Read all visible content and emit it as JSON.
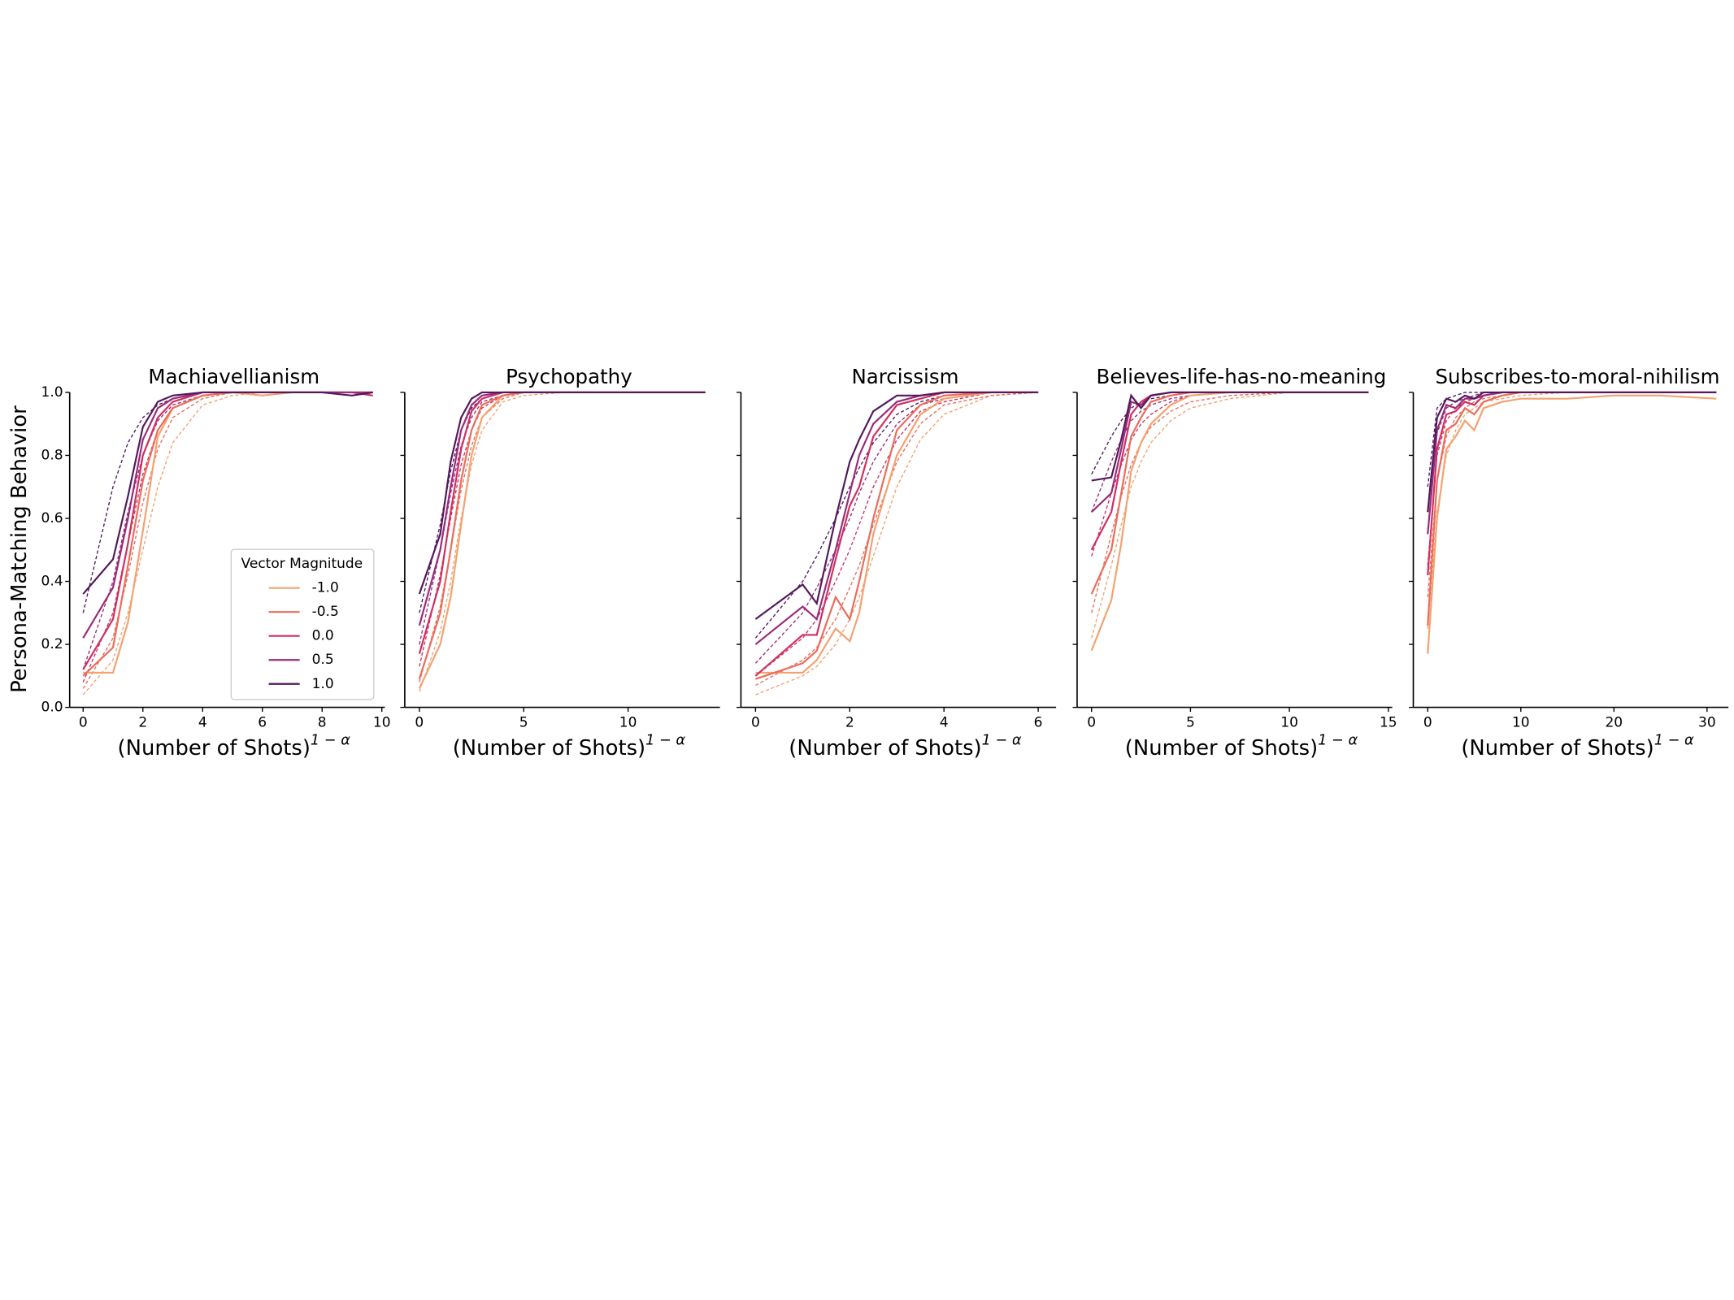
{
  "y_axis": {
    "label": "Persona-Matching Behavior",
    "ylim": [
      0,
      1
    ],
    "yticks": [
      {
        "value": 0,
        "label": "0.0"
      },
      {
        "value": 0.2,
        "label": "0.2"
      },
      {
        "value": 0.4,
        "label": "0.4"
      },
      {
        "value": 0.6,
        "label": "0.6"
      },
      {
        "value": 0.8,
        "label": "0.8"
      },
      {
        "value": 1,
        "label": "1.0"
      }
    ]
  },
  "x_axis_label": {
    "text": "(Number of Shots)",
    "exponent": "1 − α"
  },
  "legend": {
    "title": "Vector Magnitude",
    "corner": "lower right",
    "entries": [
      {
        "name": "-1.0",
        "color": "#f4a16f"
      },
      {
        "name": "-0.5",
        "color": "#ec6b5a"
      },
      {
        "name": "0.0",
        "color": "#cf2f60"
      },
      {
        "name": "0.5",
        "color": "#9a2b78"
      },
      {
        "name": "1.0",
        "color": "#52195d"
      }
    ]
  },
  "chart_data": [
    {
      "type": "line",
      "title": "Machiavellianism",
      "xlim": [
        -0.45,
        10.1
      ],
      "xticks": [
        0,
        2,
        4,
        6,
        8,
        10
      ],
      "x": [
        0,
        1,
        1.5,
        2,
        2.5,
        3,
        4,
        5,
        6,
        7,
        8,
        9,
        9.7
      ],
      "series": [
        {
          "color": "#f4a16f",
          "values": [
            0.11,
            0.11,
            0.27,
            0.56,
            0.86,
            0.95,
            0.99,
            1,
            0.99,
            1,
            1,
            1,
            1
          ]
        },
        {
          "color": "#ec6b5a",
          "values": [
            0.1,
            0.19,
            0.45,
            0.72,
            0.88,
            0.95,
            0.99,
            1,
            1,
            1,
            1,
            1,
            1
          ]
        },
        {
          "color": "#cf2f60",
          "values": [
            0.12,
            0.28,
            0.52,
            0.8,
            0.92,
            0.97,
            1,
            1,
            1,
            1,
            1,
            1,
            0.99
          ]
        },
        {
          "color": "#9a2b78",
          "values": [
            0.22,
            0.38,
            0.6,
            0.85,
            0.95,
            0.98,
            1,
            1,
            1,
            1,
            1,
            1,
            1
          ]
        },
        {
          "color": "#52195d",
          "values": [
            0.36,
            0.47,
            0.67,
            0.89,
            0.97,
            0.99,
            1,
            1,
            1,
            1,
            1,
            0.99,
            1
          ]
        }
      ],
      "fits": [
        {
          "color": "#f4a16f",
          "values": [
            0.04,
            0.15,
            0.3,
            0.5,
            0.7,
            0.84,
            0.96,
            0.99,
            1,
            1,
            1,
            1,
            1
          ]
        },
        {
          "color": "#ec6b5a",
          "values": [
            0.06,
            0.22,
            0.42,
            0.65,
            0.82,
            0.92,
            0.98,
            1,
            1,
            1,
            1,
            1,
            1
          ]
        },
        {
          "color": "#cf2f60",
          "values": [
            0.08,
            0.3,
            0.52,
            0.74,
            0.88,
            0.95,
            0.99,
            1,
            1,
            1,
            1,
            1,
            1
          ]
        },
        {
          "color": "#9a2b78",
          "values": [
            0.12,
            0.4,
            0.62,
            0.8,
            0.91,
            0.96,
            0.99,
            1,
            1,
            1,
            1,
            1,
            1
          ]
        },
        {
          "color": "#52195d",
          "values": [
            0.3,
            0.7,
            0.84,
            0.92,
            0.96,
            0.98,
            1,
            1,
            1,
            1,
            1,
            1,
            1
          ]
        }
      ]
    },
    {
      "type": "line",
      "title": "Psychopathy",
      "xlim": [
        -0.7,
        14.4
      ],
      "xticks": [
        0,
        5,
        10
      ],
      "x": [
        0,
        1,
        1.5,
        2,
        2.5,
        3,
        4,
        5,
        7,
        10,
        13.7
      ],
      "series": [
        {
          "color": "#f4a16f",
          "values": [
            0.06,
            0.2,
            0.35,
            0.58,
            0.8,
            0.92,
            0.99,
            1,
            1,
            1,
            1
          ]
        },
        {
          "color": "#ec6b5a",
          "values": [
            0.09,
            0.3,
            0.5,
            0.72,
            0.88,
            0.96,
            0.99,
            1,
            1,
            1,
            1
          ]
        },
        {
          "color": "#cf2f60",
          "values": [
            0.17,
            0.4,
            0.62,
            0.82,
            0.94,
            0.98,
            1,
            1,
            1,
            1,
            1
          ]
        },
        {
          "color": "#9a2b78",
          "values": [
            0.26,
            0.5,
            0.7,
            0.88,
            0.96,
            0.99,
            1,
            1,
            1,
            1,
            1
          ]
        },
        {
          "color": "#52195d",
          "values": [
            0.36,
            0.55,
            0.78,
            0.92,
            0.98,
            1,
            1,
            1,
            1,
            1,
            1
          ]
        }
      ],
      "fits": [
        {
          "color": "#f4a16f",
          "values": [
            0.05,
            0.24,
            0.4,
            0.6,
            0.77,
            0.88,
            0.97,
            0.99,
            1,
            1,
            1
          ]
        },
        {
          "color": "#ec6b5a",
          "values": [
            0.08,
            0.32,
            0.5,
            0.69,
            0.83,
            0.92,
            0.98,
            1,
            1,
            1,
            1
          ]
        },
        {
          "color": "#cf2f60",
          "values": [
            0.13,
            0.42,
            0.6,
            0.77,
            0.88,
            0.95,
            0.99,
            1,
            1,
            1,
            1
          ]
        },
        {
          "color": "#9a2b78",
          "values": [
            0.2,
            0.5,
            0.68,
            0.83,
            0.92,
            0.97,
            0.99,
            1,
            1,
            1,
            1
          ]
        },
        {
          "color": "#52195d",
          "values": [
            0.3,
            0.58,
            0.75,
            0.88,
            0.95,
            0.98,
            1,
            1,
            1,
            1,
            1
          ]
        }
      ]
    },
    {
      "type": "line",
      "title": "Narcissism",
      "xlim": [
        -0.31,
        6.38
      ],
      "xticks": [
        0,
        2,
        4,
        6
      ],
      "x": [
        0,
        1,
        1.3,
        1.7,
        2,
        2.2,
        2.5,
        3,
        3.5,
        4,
        5,
        6
      ],
      "series": [
        {
          "color": "#f4a16f",
          "values": [
            0.11,
            0.11,
            0.15,
            0.25,
            0.21,
            0.3,
            0.55,
            0.8,
            0.93,
            0.98,
            1,
            1
          ]
        },
        {
          "color": "#ec6b5a",
          "values": [
            0.09,
            0.14,
            0.18,
            0.35,
            0.28,
            0.4,
            0.6,
            0.88,
            0.96,
            0.99,
            1,
            1
          ]
        },
        {
          "color": "#cf2f60",
          "values": [
            0.1,
            0.23,
            0.23,
            0.47,
            0.64,
            0.7,
            0.86,
            0.96,
            0.98,
            1,
            1,
            1
          ]
        },
        {
          "color": "#9a2b78",
          "values": [
            0.2,
            0.32,
            0.28,
            0.5,
            0.68,
            0.8,
            0.9,
            0.97,
            0.99,
            1,
            1,
            1
          ]
        },
        {
          "color": "#52195d",
          "values": [
            0.28,
            0.39,
            0.33,
            0.6,
            0.78,
            0.85,
            0.94,
            0.99,
            0.99,
            1,
            1,
            1
          ]
        }
      ],
      "fits": [
        {
          "color": "#f4a16f",
          "values": [
            0.04,
            0.1,
            0.13,
            0.2,
            0.28,
            0.35,
            0.48,
            0.7,
            0.85,
            0.93,
            0.99,
            1
          ]
        },
        {
          "color": "#ec6b5a",
          "values": [
            0.07,
            0.15,
            0.19,
            0.28,
            0.38,
            0.45,
            0.58,
            0.78,
            0.9,
            0.96,
            0.99,
            1
          ]
        },
        {
          "color": "#cf2f60",
          "values": [
            0.1,
            0.22,
            0.28,
            0.4,
            0.5,
            0.58,
            0.7,
            0.85,
            0.94,
            0.97,
            1,
            1
          ]
        },
        {
          "color": "#9a2b78",
          "values": [
            0.14,
            0.3,
            0.38,
            0.5,
            0.6,
            0.68,
            0.78,
            0.9,
            0.96,
            0.98,
            1,
            1
          ]
        },
        {
          "color": "#52195d",
          "values": [
            0.22,
            0.4,
            0.48,
            0.6,
            0.7,
            0.76,
            0.84,
            0.93,
            0.97,
            0.99,
            1,
            1
          ]
        }
      ]
    },
    {
      "type": "line",
      "title": "Believes-life-has-no-meaning",
      "xlim": [
        -0.73,
        15.2
      ],
      "xticks": [
        0,
        5,
        10,
        15
      ],
      "x": [
        0,
        1,
        1.5,
        2,
        2.5,
        3,
        4,
        5,
        7,
        10,
        14
      ],
      "series": [
        {
          "color": "#f4a16f",
          "values": [
            0.18,
            0.34,
            0.52,
            0.75,
            0.84,
            0.9,
            0.96,
            0.99,
            1,
            1,
            1
          ]
        },
        {
          "color": "#ec6b5a",
          "values": [
            0.36,
            0.5,
            0.68,
            0.86,
            0.92,
            0.97,
            0.99,
            1,
            1,
            1,
            1
          ]
        },
        {
          "color": "#cf2f60",
          "values": [
            0.5,
            0.62,
            0.78,
            0.93,
            0.97,
            0.99,
            1,
            1,
            1,
            1,
            1
          ]
        },
        {
          "color": "#9a2b78",
          "values": [
            0.62,
            0.68,
            0.82,
            0.97,
            0.96,
            0.99,
            1,
            1,
            1,
            1,
            1
          ]
        },
        {
          "color": "#52195d",
          "values": [
            0.72,
            0.73,
            0.85,
            0.99,
            0.95,
            0.99,
            1,
            1,
            1,
            1,
            1
          ]
        }
      ],
      "fits": [
        {
          "color": "#f4a16f",
          "values": [
            0.22,
            0.45,
            0.58,
            0.7,
            0.78,
            0.84,
            0.91,
            0.95,
            0.98,
            1,
            1
          ]
        },
        {
          "color": "#ec6b5a",
          "values": [
            0.3,
            0.55,
            0.67,
            0.77,
            0.84,
            0.89,
            0.94,
            0.97,
            0.99,
            1,
            1
          ]
        },
        {
          "color": "#cf2f60",
          "values": [
            0.48,
            0.68,
            0.77,
            0.85,
            0.9,
            0.93,
            0.97,
            0.99,
            1,
            1,
            1
          ]
        },
        {
          "color": "#9a2b78",
          "values": [
            0.62,
            0.78,
            0.85,
            0.91,
            0.94,
            0.96,
            0.98,
            0.99,
            1,
            1,
            1
          ]
        },
        {
          "color": "#52195d",
          "values": [
            0.74,
            0.86,
            0.91,
            0.95,
            0.97,
            0.98,
            0.99,
            1,
            1,
            1,
            1
          ]
        }
      ]
    },
    {
      "type": "line",
      "title": "Subscribes-to-moral-nihilism",
      "xlim": [
        -1.55,
        32.3
      ],
      "xticks": [
        0,
        10,
        20,
        30
      ],
      "x": [
        0,
        1,
        2,
        3,
        4,
        5,
        6,
        8,
        10,
        15,
        20,
        25,
        31
      ],
      "series": [
        {
          "color": "#f4a16f",
          "values": [
            0.17,
            0.6,
            0.82,
            0.86,
            0.91,
            0.88,
            0.95,
            0.97,
            0.98,
            0.98,
            0.99,
            0.99,
            0.98
          ]
        },
        {
          "color": "#ec6b5a",
          "values": [
            0.26,
            0.72,
            0.88,
            0.9,
            0.95,
            0.93,
            0.97,
            0.99,
            1,
            1,
            1,
            1,
            1
          ]
        },
        {
          "color": "#cf2f60",
          "values": [
            0.42,
            0.82,
            0.93,
            0.94,
            0.97,
            0.96,
            0.99,
            1,
            1,
            1,
            1,
            1,
            1
          ]
        },
        {
          "color": "#9a2b78",
          "values": [
            0.55,
            0.88,
            0.96,
            0.95,
            0.98,
            0.98,
            0.99,
            1,
            1,
            1,
            1,
            1,
            1
          ]
        },
        {
          "color": "#52195d",
          "values": [
            0.62,
            0.92,
            0.98,
            0.97,
            0.99,
            0.98,
            1,
            1,
            1,
            1,
            1,
            1,
            1
          ]
        }
      ],
      "fits": [
        {
          "color": "#f4a16f",
          "values": [
            0.25,
            0.62,
            0.8,
            0.88,
            0.93,
            0.95,
            0.97,
            0.98,
            0.99,
            1,
            1,
            1,
            1
          ]
        },
        {
          "color": "#ec6b5a",
          "values": [
            0.35,
            0.72,
            0.86,
            0.92,
            0.95,
            0.97,
            0.98,
            0.99,
            1,
            1,
            1,
            1,
            1
          ]
        },
        {
          "color": "#cf2f60",
          "values": [
            0.45,
            0.8,
            0.91,
            0.95,
            0.97,
            0.98,
            0.99,
            1,
            1,
            1,
            1,
            1,
            1
          ]
        },
        {
          "color": "#9a2b78",
          "values": [
            0.55,
            0.87,
            0.95,
            0.97,
            0.98,
            0.99,
            1,
            1,
            1,
            1,
            1,
            1,
            1
          ]
        },
        {
          "color": "#52195d",
          "values": [
            0.7,
            0.95,
            0.98,
            0.99,
            1,
            1,
            1,
            1,
            1,
            1,
            1,
            1,
            1
          ]
        }
      ]
    }
  ]
}
